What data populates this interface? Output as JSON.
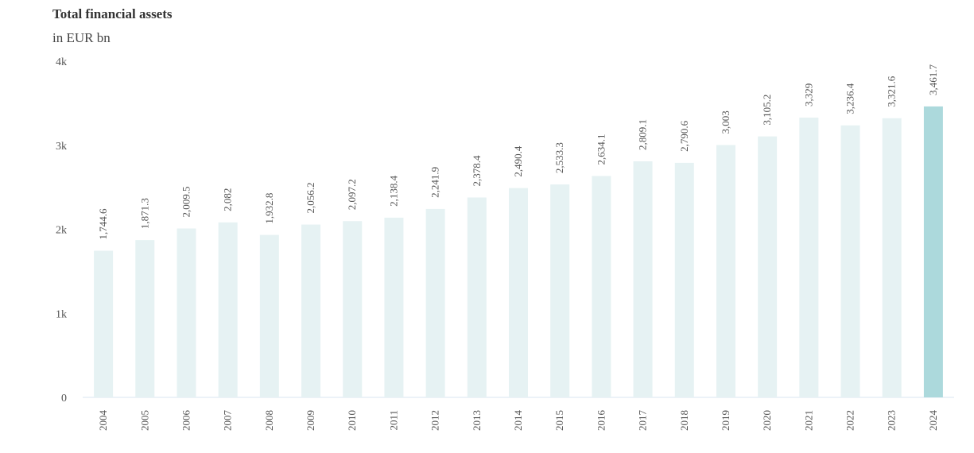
{
  "chart_data": {
    "type": "bar",
    "title": "Total financial assets",
    "subtitle": "in EUR bn",
    "categories": [
      "2004",
      "2005",
      "2006",
      "2007",
      "2008",
      "2009",
      "2010",
      "2011",
      "2012",
      "2013",
      "2014",
      "2015",
      "2016",
      "2017",
      "2018",
      "2019",
      "2020",
      "2021",
      "2022",
      "2023",
      "2024"
    ],
    "values": [
      1744.6,
      1871.3,
      2009.5,
      2082,
      1932.8,
      2056.2,
      2097.2,
      2138.4,
      2241.9,
      2378.4,
      2490.4,
      2533.3,
      2634.1,
      2809.1,
      2790.6,
      3003,
      3105.2,
      3329,
      3236.4,
      3321.6,
      3461.7
    ],
    "value_labels": [
      "1,744.6",
      "1,871.3",
      "2,009.5",
      "2,082",
      "1,932.8",
      "2,056.2",
      "2,097.2",
      "2,138.4",
      "2,241.9",
      "2,378.4",
      "2,490.4",
      "2,533.3",
      "2,634.1",
      "2,809.1",
      "2,790.6",
      "3,003",
      "3,105.2",
      "3,329",
      "3,236.4",
      "3,321.6",
      "3,461.7"
    ],
    "xlabel": "",
    "ylabel": "",
    "ylim": [
      0,
      4000
    ],
    "y_ticks": [
      0,
      1000,
      2000,
      3000,
      4000
    ],
    "y_tick_labels": [
      "0",
      "1k",
      "2k",
      "3k",
      "4k"
    ],
    "grid": false,
    "legend": "none",
    "colors": {
      "bar": "#e6f2f3",
      "highlight_bar": "#acd9dc",
      "axis_line": "#d8e6f0"
    },
    "highlighted_category": "2024"
  }
}
